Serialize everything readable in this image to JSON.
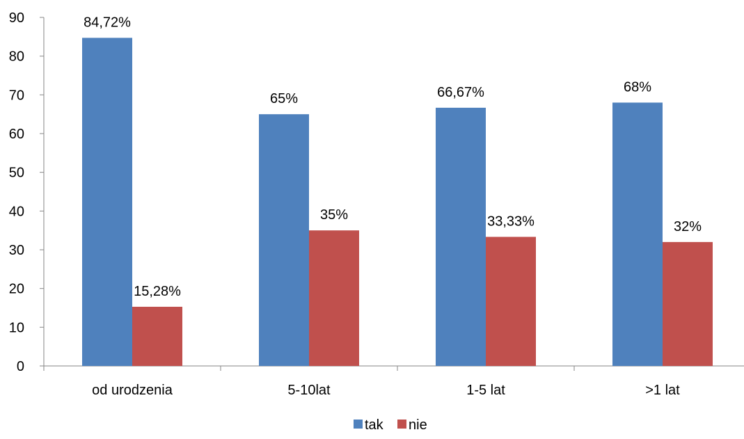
{
  "chart_data": {
    "type": "bar",
    "categories": [
      "od urodzenia",
      "5-10lat",
      "1-5 lat",
      ">1 lat"
    ],
    "series": [
      {
        "name": "tak",
        "color": "#4f81bd",
        "values": [
          84.72,
          65,
          66.67,
          68
        ],
        "labels": [
          "84,72%",
          "65%",
          "66,67%",
          "68%"
        ]
      },
      {
        "name": "nie",
        "color": "#c0504d",
        "values": [
          15.28,
          35,
          33.33,
          32
        ],
        "labels": [
          "15,28%",
          "35%",
          "33,33%",
          "32%"
        ]
      }
    ],
    "ylim": [
      0,
      90
    ],
    "yticks": [
      "0",
      "10",
      "20",
      "30",
      "40",
      "50",
      "60",
      "70",
      "80",
      "90"
    ],
    "ytick_step": 10,
    "grid": false,
    "legend_position": "bottom",
    "title": "",
    "xlabel": "",
    "ylabel": ""
  }
}
